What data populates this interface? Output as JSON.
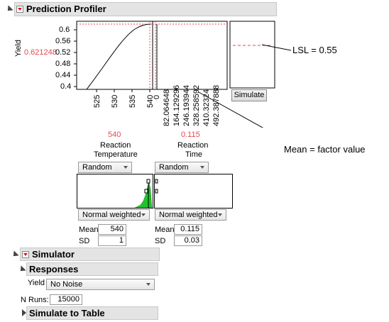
{
  "profiler": {
    "title": "Prediction Profiler",
    "response_label": "Yield",
    "response_value": "0.621248",
    "y_ticks": [
      "0.6",
      "0.56",
      "0.52",
      "0.48",
      "0.44",
      "0.4"
    ],
    "factors": [
      {
        "value": "540",
        "name_line1": "Reaction",
        "name_line2": "Temperature",
        "x_ticks": [
          "525",
          "530",
          "535",
          "540"
        ],
        "distribution": "Random",
        "weighting": "Normal weighted",
        "mean_label": "Mean",
        "mean": "540",
        "sd_label": "SD",
        "sd": "1"
      },
      {
        "value": "0.115",
        "name_line1": "Reaction",
        "name_line2": "Time",
        "x_ticks": [
          "0",
          "82.064648",
          "164.129296",
          "246.193944",
          "328.258592",
          "410.32324",
          "492.387888"
        ],
        "distribution": "Random",
        "weighting": "Normal weighted",
        "mean_label": "Mean",
        "mean": "0.115",
        "sd_label": "SD",
        "sd": "0.03"
      }
    ],
    "simulate_button": "Simulate"
  },
  "simulator": {
    "title": "Simulator",
    "responses_title": "Responses",
    "yield_label": "Yield",
    "noise_option": "No Noise",
    "n_runs_label": "N Runs:",
    "n_runs": "15000",
    "simulate_to_table": "Simulate to Table"
  },
  "annotations": {
    "lsl": "LSL = 0.55",
    "mean_note": "Mean = factor value"
  },
  "colors": {
    "accent_red": "#e8474f",
    "histogram_green": "#22c22e",
    "header_gray": "#e4e4e4"
  }
}
